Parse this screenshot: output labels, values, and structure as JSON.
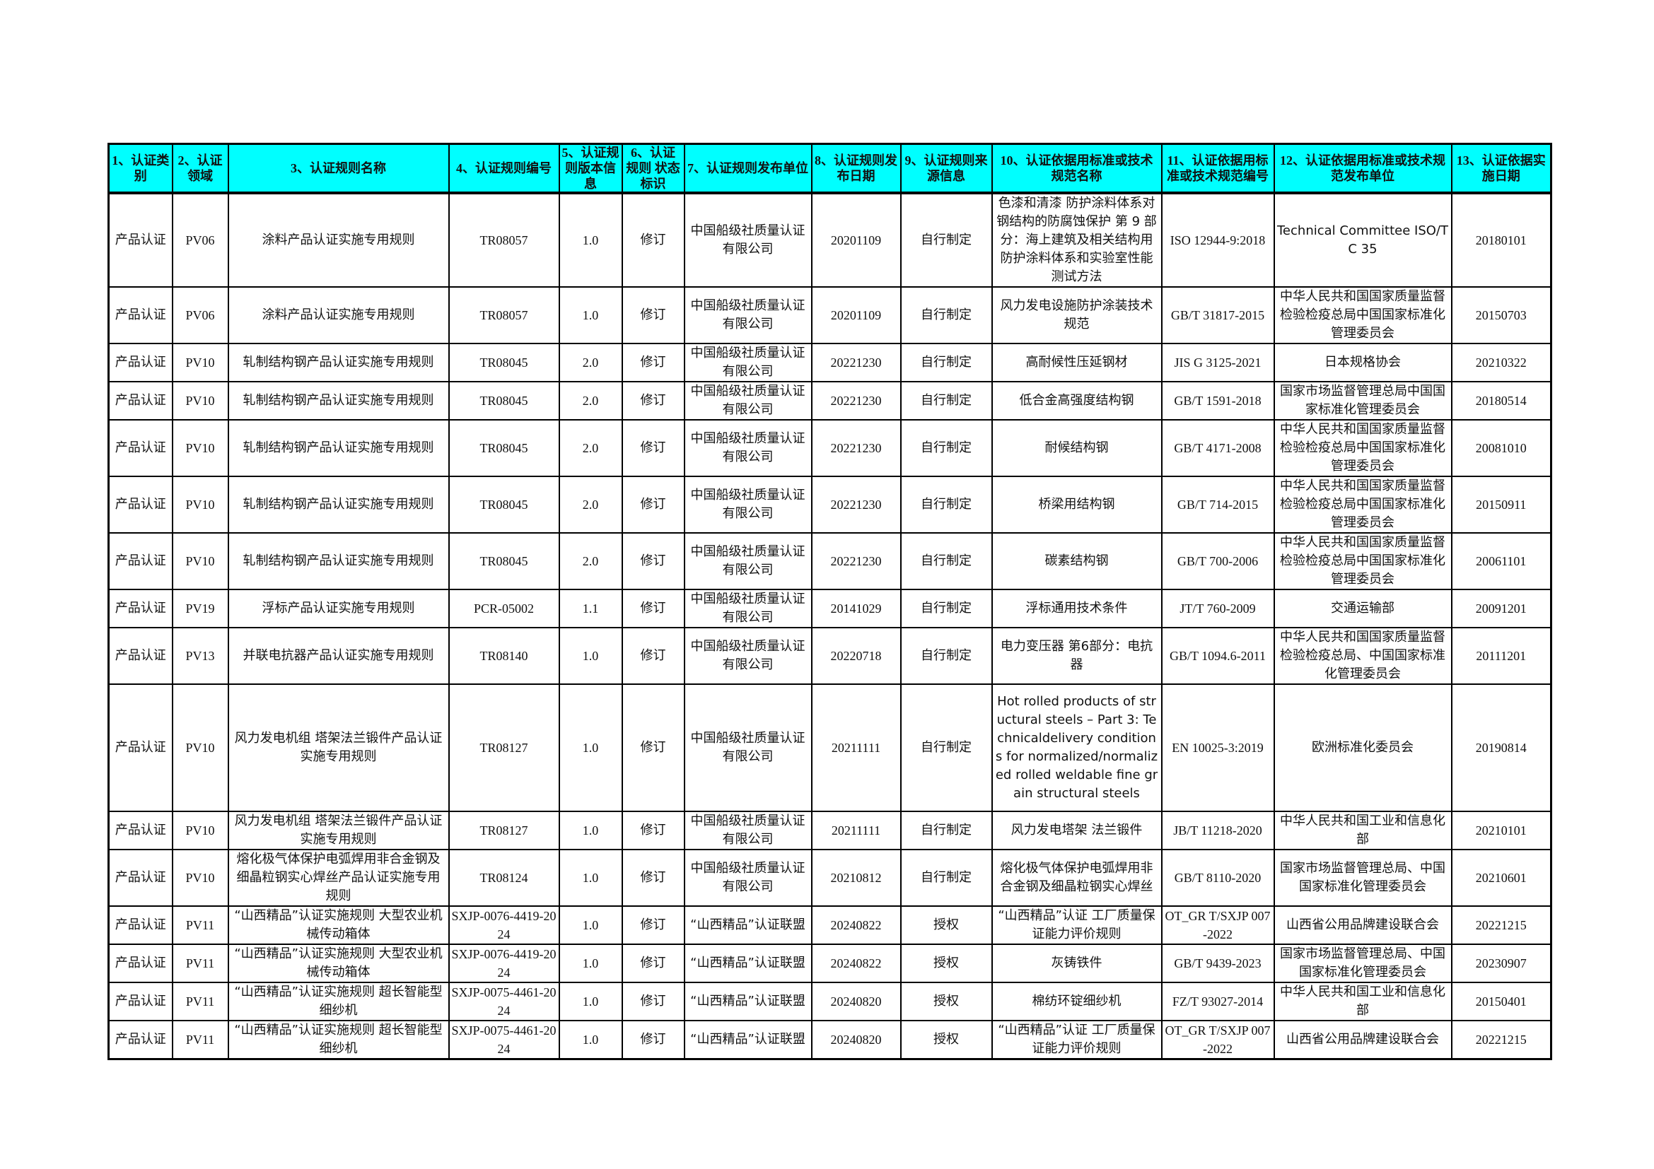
{
  "headers": [
    "1、认证类别",
    "2、认证领域",
    "3、认证规则名称",
    "4、认证规则编号",
    "5、认证规则版本信息",
    "6、认证规则 状态标识",
    "7、认证规则发布单位",
    "8、认证规则发布日期",
    "9、认证规则来源信息",
    "10、认证依据用标准或技术规范名称",
    "11、认证依据用标准或技术规范编号",
    "12、认证依据用标准或技术规范发布单位",
    "13、认证依据实施日期"
  ],
  "rows": [
    [
      "产品认证",
      "PV06",
      "涂料产品认证实施专用规则",
      "TR08057",
      "1.0",
      "修订",
      "中国船级社质量认证有限公司",
      "20201109",
      "自行制定",
      "色漆和清漆 防护涂料体系对钢结构的防腐蚀保护 第 9 部分：海上建筑及相关结构用防护涂料体系和实验室性能测试方法",
      "ISO 12944-9:2018",
      "Technical Committee ISO/TC 35",
      "20180101"
    ],
    [
      "产品认证",
      "PV06",
      "涂料产品认证实施专用规则",
      "TR08057",
      "1.0",
      "修订",
      "中国船级社质量认证有限公司",
      "20201109",
      "自行制定",
      "风力发电设施防护涂装技术规范",
      "GB/T 31817-2015",
      "中华人民共和国国家质量监督检验检疫总局中国国家标准化管理委员会",
      "20150703"
    ],
    [
      "产品认证",
      "PV10",
      "轧制结构钢产品认证实施专用规则",
      "TR08045",
      "2.0",
      "修订",
      "中国船级社质量认证有限公司",
      "20221230",
      "自行制定",
      "高耐候性压延钢材",
      "JIS G 3125-2021",
      "日本规格协会",
      "20210322"
    ],
    [
      "产品认证",
      "PV10",
      "轧制结构钢产品认证实施专用规则",
      "TR08045",
      "2.0",
      "修订",
      "中国船级社质量认证有限公司",
      "20221230",
      "自行制定",
      "低合金高强度结构钢",
      "GB/T 1591-2018",
      "国家市场监督管理总局中国国家标准化管理委员会",
      "20180514"
    ],
    [
      "产品认证",
      "PV10",
      "轧制结构钢产品认证实施专用规则",
      "TR08045",
      "2.0",
      "修订",
      "中国船级社质量认证有限公司",
      "20221230",
      "自行制定",
      "耐候结构钢",
      "GB/T 4171-2008",
      "中华人民共和国国家质量监督检验检疫总局中国国家标准化管理委员会",
      "20081010"
    ],
    [
      "产品认证",
      "PV10",
      "轧制结构钢产品认证实施专用规则",
      "TR08045",
      "2.0",
      "修订",
      "中国船级社质量认证有限公司",
      "20221230",
      "自行制定",
      "桥梁用结构钢",
      "GB/T 714-2015",
      "中华人民共和国国家质量监督检验检疫总局中国国家标准化管理委员会",
      "20150911"
    ],
    [
      "产品认证",
      "PV10",
      "轧制结构钢产品认证实施专用规则",
      "TR08045",
      "2.0",
      "修订",
      "中国船级社质量认证有限公司",
      "20221230",
      "自行制定",
      "碳素结构钢",
      "GB/T 700-2006",
      "中华人民共和国国家质量监督检验检疫总局中国国家标准化管理委员会",
      "20061101"
    ],
    [
      "产品认证",
      "PV19",
      "浮标产品认证实施专用规则",
      "PCR-05002",
      "1.1",
      "修订",
      "中国船级社质量认证有限公司",
      "20141029",
      "自行制定",
      "浮标通用技术条件",
      "JT/T 760-2009",
      "交通运输部",
      "20091201"
    ],
    [
      "产品认证",
      "PV13",
      "并联电抗器产品认证实施专用规则",
      "TR08140",
      "1.0",
      "修订",
      "中国船级社质量认证有限公司",
      "20220718",
      "自行制定",
      "电力变压器 第6部分：电抗器",
      "GB/T 1094.6-2011",
      "中华人民共和国国家质量监督检验检疫总局、中国国家标准化管理委员会",
      "20111201"
    ],
    [
      "产品认证",
      "PV10",
      "风力发电机组 塔架法兰锻件产品认证实施专用规则",
      "TR08127",
      "1.0",
      "修订",
      "中国船级社质量认证有限公司",
      "20211111",
      "自行制定",
      "Hot rolled products of structural steels – Part 3: Technicaldelivery conditions for normalized/normalized rolled weldable fine grain structural steels",
      "EN 10025-3:2019",
      "欧洲标准化委员会",
      "20190814"
    ],
    [
      "产品认证",
      "PV10",
      "风力发电机组 塔架法兰锻件产品认证实施专用规则",
      "TR08127",
      "1.0",
      "修订",
      "中国船级社质量认证有限公司",
      "20211111",
      "自行制定",
      "风力发电塔架 法兰锻件",
      "JB/T 11218-2020",
      "中华人民共和国工业和信息化部",
      "20210101"
    ],
    [
      "产品认证",
      "PV10",
      "熔化极气体保护电弧焊用非合金钢及细晶粒钢实心焊丝产品认证实施专用规则",
      "TR08124",
      "1.0",
      "修订",
      "中国船级社质量认证有限公司",
      "20210812",
      "自行制定",
      "熔化极气体保护电弧焊用非合金钢及细晶粒钢实心焊丝",
      "GB/T 8110-2020",
      "国家市场监督管理总局、中国国家标准化管理委员会",
      "20210601"
    ],
    [
      "产品认证",
      "PV11",
      "“山西精品”认证实施规则 大型农业机械传动箱体",
      "SXJP-0076-4419-2024",
      "1.0",
      "修订",
      "“山西精品”认证联盟",
      "20240822",
      "授权",
      "“山西精品”认证 工厂质量保证能力评价规则",
      "OT_GR T/SXJP 007-2022",
      "山西省公用品牌建设联合会",
      "20221215"
    ],
    [
      "产品认证",
      "PV11",
      "“山西精品”认证实施规则 大型农业机械传动箱体",
      "SXJP-0076-4419-2024",
      "1.0",
      "修订",
      "“山西精品”认证联盟",
      "20240822",
      "授权",
      "灰铸铁件",
      "GB/T 9439-2023",
      "国家市场监督管理总局、中国国家标准化管理委员会",
      "20230907"
    ],
    [
      "产品认证",
      "PV11",
      "“山西精品”认证实施规则 超长智能型细纱机",
      "SXJP-0075-4461-2024",
      "1.0",
      "修订",
      "“山西精品”认证联盟",
      "20240820",
      "授权",
      "棉纺环锭细纱机",
      "FZ/T 93027-2014",
      "中华人民共和国工业和信息化部",
      "20150401"
    ],
    [
      "产品认证",
      "PV11",
      "“山西精品”认证实施规则 超长智能型细纱机",
      "SXJP-0075-4461-2024",
      "1.0",
      "修订",
      "“山西精品”认证联盟",
      "20240820",
      "授权",
      "“山西精品”认证 工厂质量保证能力评价规则",
      "OT_GR T/SXJP 007-2022",
      "山西省公用品牌建设联合会",
      "20221215"
    ]
  ],
  "colors": {
    "header_bg": "#00ffff",
    "border": "#000000"
  }
}
